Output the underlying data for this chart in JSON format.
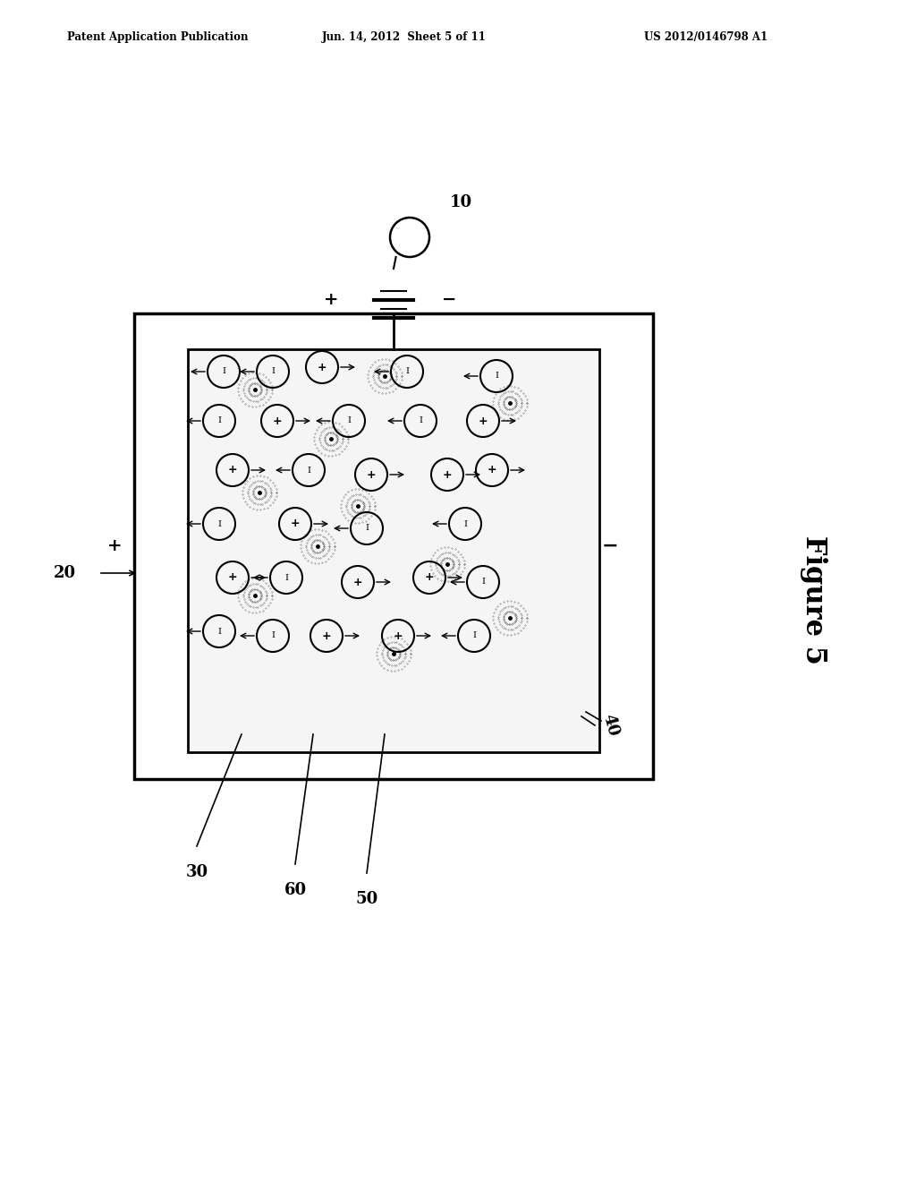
{
  "header_left": "Patent Application Publication",
  "header_center": "Jun. 14, 2012  Sheet 5 of 11",
  "header_right": "US 2012/0146798 A1",
  "figure_label": "Figure 5",
  "label_10": "10",
  "label_20": "20",
  "label_30": "30",
  "label_40": "40",
  "label_50": "50",
  "label_60": "60",
  "bg_color": "#ffffff",
  "line_color": "#000000",
  "box_fill": "#f0f0f0",
  "inner_box_fill": "#e8e8e8"
}
